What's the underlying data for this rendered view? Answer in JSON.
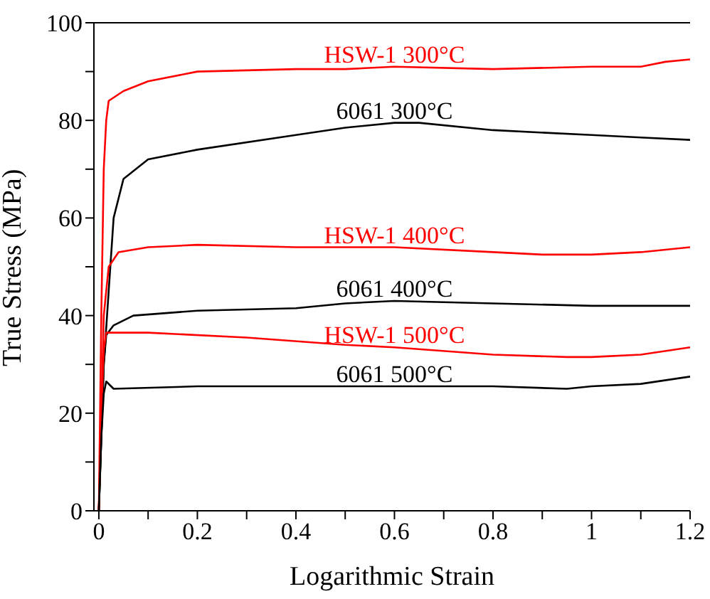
{
  "chart_data": {
    "type": "line",
    "xlabel": "Logarithmic Strain",
    "ylabel": "True Stress (MPa)",
    "xlim": [
      -0.01,
      1.2
    ],
    "ylim": [
      0,
      100
    ],
    "xticks": [
      0,
      {
        "value": 0.1,
        "label": null
      },
      0.2,
      {
        "value": 0.3,
        "label": null
      },
      0.4,
      {
        "value": 0.5,
        "label": null
      },
      0.6,
      {
        "value": 0.7,
        "label": null
      },
      0.8,
      {
        "value": 0.9,
        "label": null
      },
      1,
      {
        "value": 1.1,
        "label": null
      },
      1.2
    ],
    "yticks": [
      0,
      {
        "value": 10,
        "label": null
      },
      20,
      {
        "value": 30,
        "label": null
      },
      40,
      {
        "value": 50,
        "label": null
      },
      60,
      {
        "value": 70,
        "label": null
      },
      80,
      {
        "value": 90,
        "label": null
      },
      100
    ],
    "grid": false,
    "legend": false,
    "marker": "none",
    "line_style": "solid",
    "series": [
      {
        "name": "HSW-1 300°C",
        "color": "#ff0000",
        "x": [
          0,
          0.005,
          0.01,
          0.015,
          0.02,
          0.05,
          0.1,
          0.2,
          0.4,
          0.5,
          0.6,
          0.8,
          1,
          1.1,
          1.15,
          1.2
        ],
        "values": [
          0,
          40,
          70,
          80,
          84,
          86,
          88,
          90,
          90.5,
          90.5,
          91,
          90.5,
          91,
          91,
          92,
          92.5
        ]
      },
      {
        "name": "6061 300°C",
        "color": "#000000",
        "x": [
          0,
          0.01,
          0.02,
          0.03,
          0.05,
          0.1,
          0.2,
          0.4,
          0.5,
          0.6,
          0.65,
          0.8,
          1,
          1.1,
          1.2
        ],
        "values": [
          0,
          30,
          45,
          60,
          68,
          72,
          74,
          77,
          78.5,
          79.5,
          79.5,
          78,
          77,
          76.5,
          76
        ]
      },
      {
        "name": "HSW-1 400°C",
        "color": "#ff0000",
        "x": [
          0,
          0.01,
          0.02,
          0.04,
          0.1,
          0.2,
          0.4,
          0.5,
          0.6,
          0.8,
          0.9,
          1,
          1.1,
          1.2
        ],
        "values": [
          0,
          40,
          50,
          53,
          54,
          54.5,
          54,
          54,
          54,
          53,
          52.5,
          52.5,
          53,
          54
        ]
      },
      {
        "name": "6061 400°C",
        "color": "#000000",
        "x": [
          0,
          0.01,
          0.015,
          0.03,
          0.07,
          0.2,
          0.4,
          0.5,
          0.6,
          0.8,
          1,
          1.2
        ],
        "values": [
          0,
          30,
          36,
          38,
          40,
          41,
          41.5,
          42.5,
          43,
          42.5,
          42,
          42
        ]
      },
      {
        "name": "HSW-1 500°C",
        "color": "#ff0000",
        "x": [
          0,
          0.005,
          0.01,
          0.015,
          0.1,
          0.3,
          0.5,
          0.6,
          0.8,
          0.95,
          1,
          1.1,
          1.2
        ],
        "values": [
          0,
          20,
          33,
          36.5,
          36.5,
          35.5,
          34,
          33.5,
          32,
          31.5,
          31.5,
          32,
          33.5
        ]
      },
      {
        "name": "6061 500°C",
        "color": "#000000",
        "x": [
          0,
          0.005,
          0.01,
          0.015,
          0.03,
          0.2,
          0.4,
          0.5,
          0.6,
          0.8,
          0.95,
          1,
          1.1,
          1.2
        ],
        "values": [
          0,
          15,
          24,
          26.5,
          25,
          25.5,
          25.5,
          25.5,
          25.5,
          25.5,
          25,
          25.5,
          26,
          27.5
        ]
      }
    ]
  }
}
